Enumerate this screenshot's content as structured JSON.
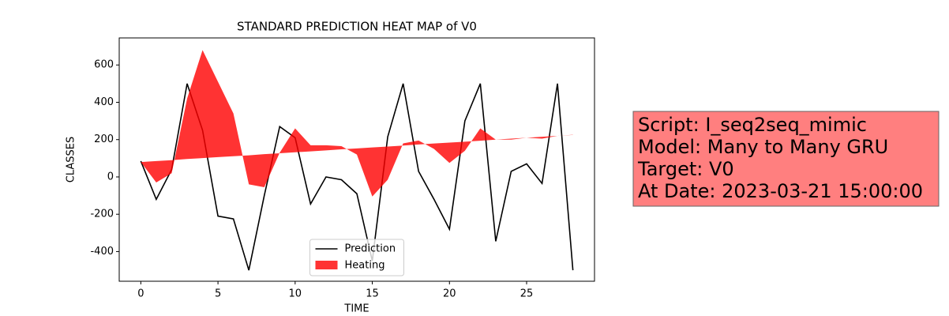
{
  "chart_data": {
    "type": "line",
    "title": "STANDARD PREDICTION HEAT MAP of V0",
    "x_label": "TIME",
    "y_label": "CLASSES",
    "x": [
      0,
      1,
      2,
      3,
      4,
      5,
      6,
      7,
      8,
      9,
      10,
      11,
      12,
      13,
      14,
      15,
      16,
      17,
      18,
      19,
      20,
      21,
      22,
      23,
      24,
      25,
      26,
      27,
      28
    ],
    "series": [
      {
        "name": "Prediction",
        "color": "#000000",
        "kind": "line",
        "values": [
          85,
          -120,
          40,
          500,
          250,
          -210,
          -225,
          -500,
          -100,
          270,
          210,
          -145,
          0,
          -15,
          -90,
          -450,
          215,
          500,
          30,
          -120,
          -280,
          300,
          500,
          -345,
          30,
          70,
          -35,
          500,
          -500
        ]
      },
      {
        "name": "Heating",
        "color": "#ff0000",
        "opacity": 0.8,
        "kind": "fill",
        "values": [
          80,
          -30,
          20,
          420,
          680,
          510,
          340,
          -40,
          -55,
          130,
          260,
          170,
          170,
          165,
          120,
          -105,
          -15,
          180,
          195,
          150,
          75,
          140,
          260,
          200,
          200,
          210,
          205,
          220,
          225
        ],
        "baseline": [
          80,
          85,
          90,
          96,
          101,
          106,
          111,
          116,
          122,
          127,
          132,
          137,
          142,
          148,
          153,
          158,
          163,
          168,
          174,
          179,
          184,
          189,
          194,
          200,
          205,
          210,
          215,
          220,
          226
        ]
      }
    ],
    "xlim": [
      -1.4,
      29.4
    ],
    "ylim": [
      -559,
      745
    ],
    "xticks": [
      0,
      5,
      10,
      15,
      20,
      25
    ],
    "yticks": [
      -400,
      -200,
      0,
      200,
      400,
      600
    ],
    "legend": "lower center",
    "annotation": [
      "Script: I_seq2seq_mimic",
      "Model: Many to Many GRU",
      "Target: V0",
      "At Date: 2023-03-21 15:00:00"
    ],
    "annotation_color": "#ff7f7f"
  }
}
